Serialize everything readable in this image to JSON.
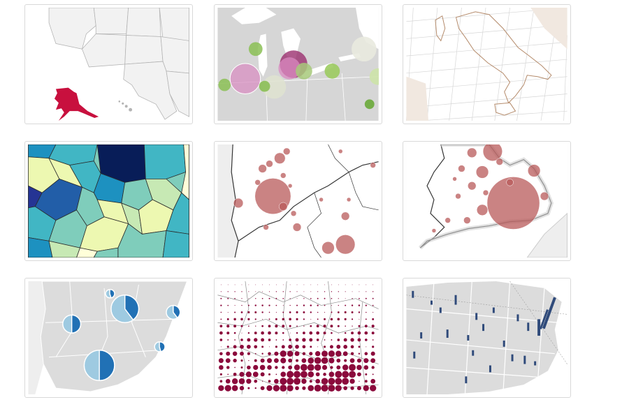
{
  "gallery": {
    "items": [
      {
        "id": "us-alaska-highlight",
        "accent": "#c8103e",
        "base": "#f2f2f2",
        "stroke": "#9a9a9a"
      },
      {
        "id": "great-lakes-bubbles",
        "accent": "#9b2f6f",
        "base": "#d9d9d9",
        "stroke": "#ffffff"
      },
      {
        "id": "italy-graticule",
        "accent": "#b48a6a",
        "base": "#ffffff",
        "stroke": "#d8d8d8"
      },
      {
        "id": "choropleth-ylgnbu",
        "accent": "#08306b",
        "base": "#ffffff",
        "stroke": "#333333"
      },
      {
        "id": "border-region-bubbles",
        "accent": "#b85a5a",
        "base": "#ffffff",
        "stroke": "#333333"
      },
      {
        "id": "england-wales-bubbles",
        "accent": "#b85a5a",
        "base": "#f2f2f2",
        "stroke": "#333333"
      },
      {
        "id": "spain-pie-symbols",
        "accent": "#2171b5",
        "base": "#dcdcdc",
        "stroke": "#ffffff"
      },
      {
        "id": "dot-density-grid",
        "accent": "#8b0a3c",
        "base": "#ffffff",
        "stroke": "#8a8a8a"
      },
      {
        "id": "us-spike-map",
        "accent": "#2f4a7a",
        "base": "#dcdcdc",
        "stroke": "#ffffff"
      }
    ]
  }
}
